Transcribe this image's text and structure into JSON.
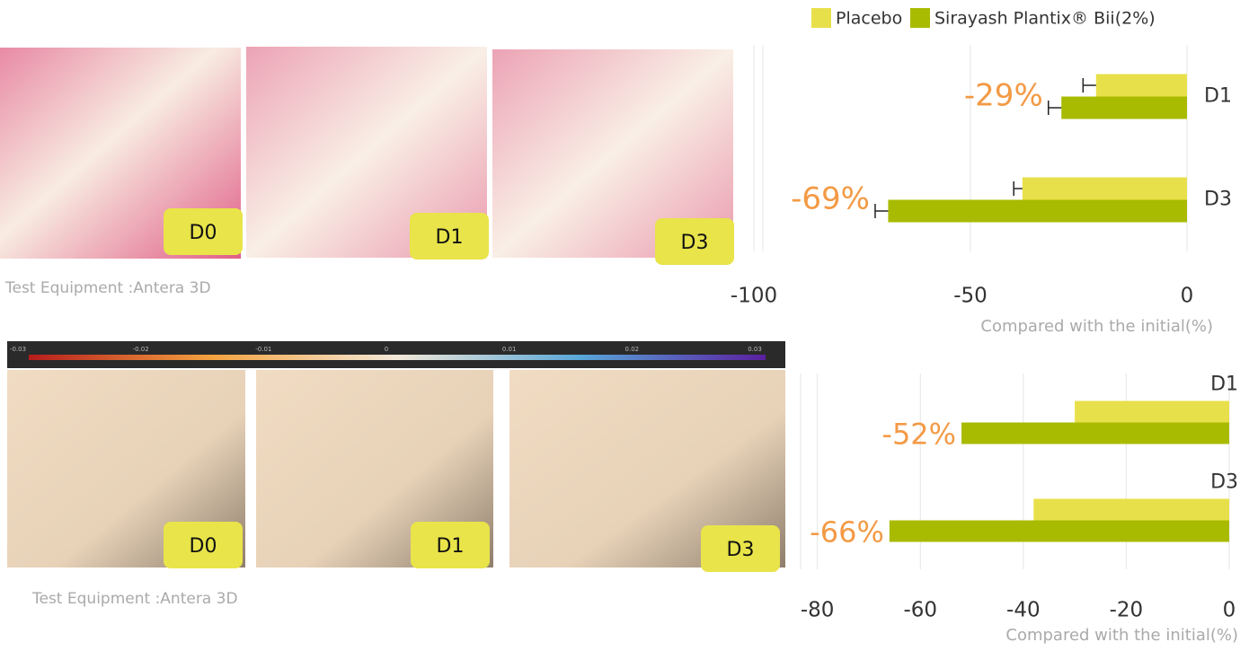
{
  "panels": [
    {
      "labels": [
        "D0",
        "D1",
        "D3"
      ],
      "equipment": "Test Equipment :Antera 3D"
    },
    {
      "labels": [
        "D0",
        "D1",
        "D3"
      ],
      "equipment": "Test Equipment :Antera 3D",
      "colorbar": [
        "-0.03",
        "-0.02",
        "-0.01",
        "0",
        "0.01",
        "0.02",
        "0.03"
      ]
    }
  ],
  "chart_data": [
    {
      "type": "bar",
      "orientation": "horizontal",
      "categories": [
        "D1",
        "D3"
      ],
      "series": [
        {
          "name": "Placebo",
          "color": "#e8e04a",
          "values": [
            -21,
            -38
          ],
          "errors": [
            3,
            2
          ]
        },
        {
          "name": "Sirayash Plantix® Bii(2%)",
          "color": "#a9bb00",
          "values": [
            -29,
            -69
          ],
          "errors": [
            3,
            3
          ],
          "value_labels": [
            "-29%",
            "-69%"
          ]
        }
      ],
      "xlim": [
        -100,
        0
      ],
      "xticks": [
        -100,
        -50,
        0
      ],
      "xlabel": "Compared with the initial(%)",
      "grid": true
    },
    {
      "type": "bar",
      "orientation": "horizontal",
      "categories": [
        "D1",
        "D3"
      ],
      "series": [
        {
          "color": "#e8e04a",
          "values": [
            -30,
            -38
          ]
        },
        {
          "color": "#a9bb00",
          "values": [
            -52,
            -66
          ],
          "value_labels": [
            "-52%",
            "-66%"
          ]
        }
      ],
      "xlim": [
        -85,
        0
      ],
      "xticks": [
        -80,
        -60,
        -40,
        -20,
        0
      ],
      "xlabel": "Compared with the initial(%)",
      "grid": true
    }
  ]
}
